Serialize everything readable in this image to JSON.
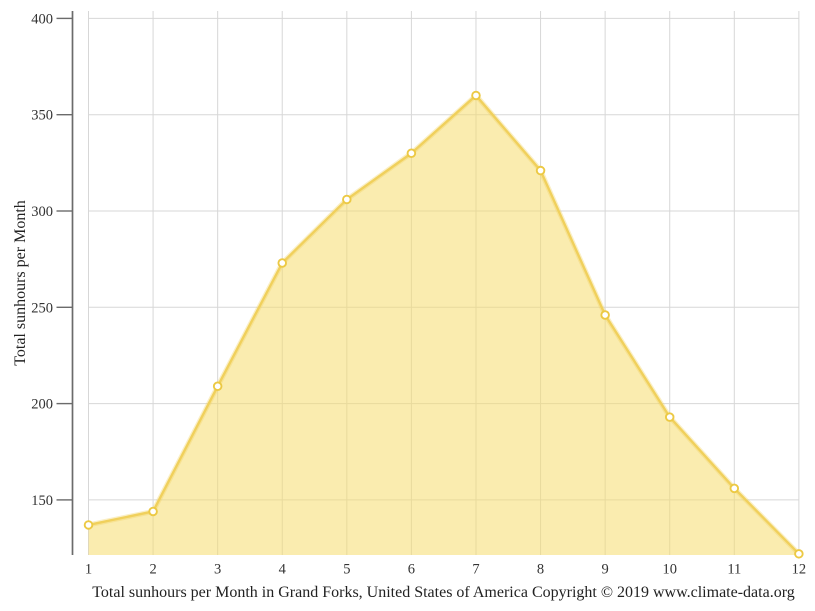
{
  "chart_data": {
    "type": "area",
    "title": "",
    "caption": "Total sunhours per Month in Grand Forks, United States of America Copyright © 2019 www.climate-data.org",
    "xlabel": "",
    "ylabel": "Total sunhours per Month",
    "categories": [
      "1",
      "2",
      "3",
      "4",
      "5",
      "6",
      "7",
      "8",
      "9",
      "10",
      "11",
      "12"
    ],
    "values": [
      137,
      144,
      209,
      273,
      306,
      330,
      360,
      321,
      246,
      193,
      156,
      122
    ],
    "series_name": "Total sunhours per Month",
    "yticks": [
      150,
      200,
      250,
      300,
      350,
      400
    ],
    "ylim": [
      121.5,
      403.5
    ],
    "xlim": [
      1,
      12
    ],
    "grid": true,
    "legend_position": "none",
    "colors": {
      "area_fill": "#f5dc6e",
      "area_fill_opacity": 0.55,
      "line": "#f0d05c",
      "marker_stroke": "#ecc944",
      "marker_fill": "#ffffff",
      "grid": "#d7d7d7",
      "axis": "#6b6b6b",
      "tick_text": "#333333",
      "label_text": "#222222"
    }
  }
}
